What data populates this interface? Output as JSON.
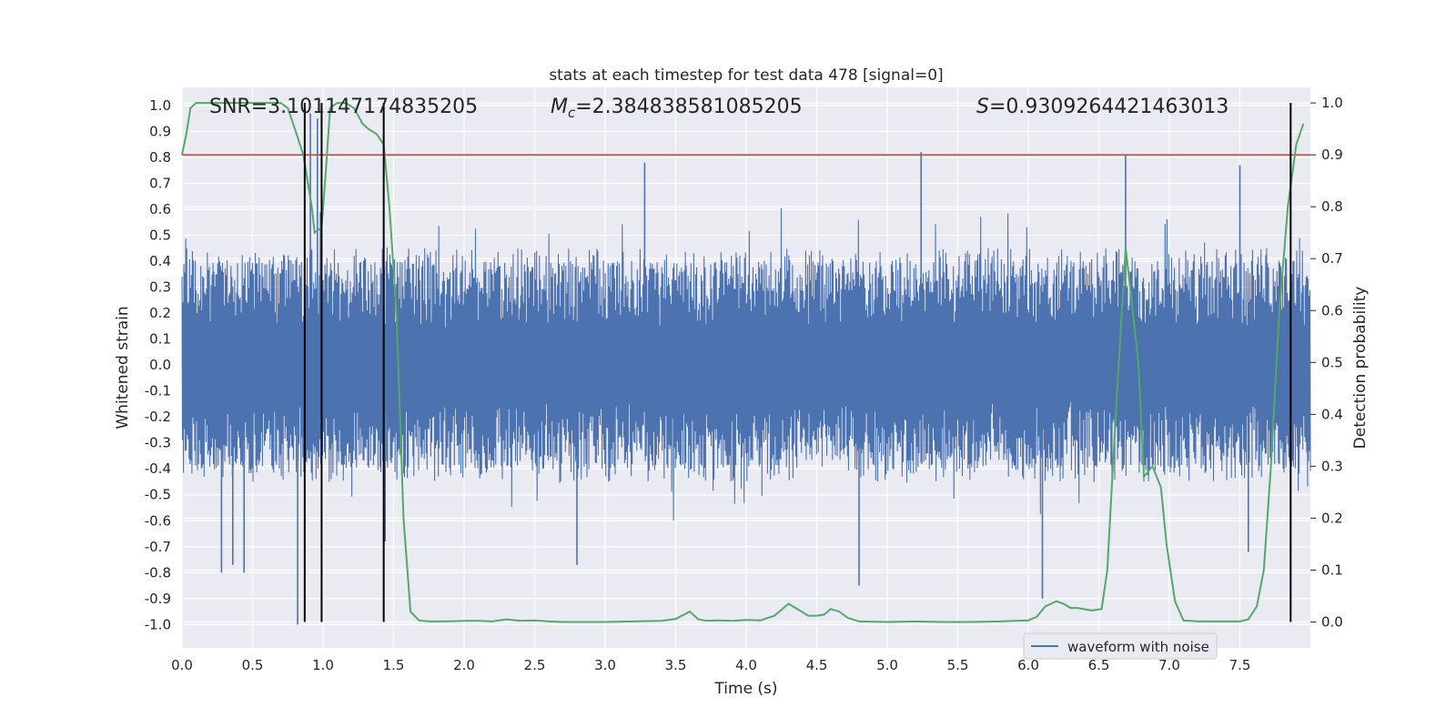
{
  "chart_data": {
    "type": "line",
    "title": "stats at each timestep for test data 478 [signal=0]",
    "xlabel": "Time (s)",
    "ylabel": "Whitened strain",
    "y2label": "Detection probability",
    "xlim": [
      0.0,
      8.0
    ],
    "ylim": [
      -1.09,
      1.07
    ],
    "y2lim": [
      -0.05,
      1.03
    ],
    "x_ticks": [
      "0.0",
      "0.5",
      "1.0",
      "1.5",
      "2.0",
      "2.5",
      "3.0",
      "3.5",
      "4.0",
      "4.5",
      "5.0",
      "5.5",
      "6.0",
      "6.5",
      "7.0",
      "7.5"
    ],
    "y_ticks": [
      "1.0",
      "0.9",
      "0.8",
      "0.7",
      "0.6",
      "0.5",
      "0.4",
      "0.3",
      "0.2",
      "0.1",
      "0.0",
      "-0.1",
      "-0.2",
      "-0.3",
      "-0.4",
      "-0.5",
      "-0.6",
      "-0.7",
      "-0.8",
      "-0.9",
      "-1.0"
    ],
    "y2_ticks": [
      "1.0",
      "0.9",
      "0.8",
      "0.7",
      "0.6",
      "0.5",
      "0.4",
      "0.3",
      "0.2",
      "0.1",
      "0.0"
    ],
    "grid": true,
    "legend": {
      "position": "bottom-right",
      "entries": [
        "waveform with noise"
      ]
    },
    "annotations": {
      "snr_label": "SNR=3.101147174835205",
      "mc_symbol": "M",
      "mc_sub": "c",
      "mc_value": "=2.384838581085205",
      "s_symbol": "S",
      "s_value": "=0.9309264421463013"
    },
    "threshold": 0.9,
    "detection_markers_s": [
      0.87,
      0.99,
      1.43,
      7.86
    ],
    "waveform": {
      "name": "waveform with noise",
      "t_start": 0.0,
      "t_end": 8.0,
      "typical_envelope": 0.45,
      "spikes": [
        {
          "t": 0.28,
          "v": -0.8
        },
        {
          "t": 0.36,
          "v": -0.77
        },
        {
          "t": 0.44,
          "v": -0.8
        },
        {
          "t": 0.82,
          "v": -1.0
        },
        {
          "t": 0.91,
          "v": 0.97
        },
        {
          "t": 0.96,
          "v": 0.95
        },
        {
          "t": 1.44,
          "v": -0.68
        },
        {
          "t": 2.8,
          "v": -0.77
        },
        {
          "t": 3.28,
          "v": 0.78
        },
        {
          "t": 4.8,
          "v": -0.85
        },
        {
          "t": 5.24,
          "v": 0.82
        },
        {
          "t": 6.1,
          "v": -0.9
        },
        {
          "t": 6.69,
          "v": 0.81
        },
        {
          "t": 7.5,
          "v": 0.77
        },
        {
          "t": 7.56,
          "v": -0.72
        }
      ]
    },
    "detection_probability": {
      "name": "Detection probability",
      "x": [
        0.0,
        0.03,
        0.06,
        0.1,
        0.15,
        0.2,
        0.3,
        0.4,
        0.5,
        0.6,
        0.7,
        0.75,
        0.8,
        0.86,
        0.92,
        0.94,
        0.99,
        1.02,
        1.05,
        1.1,
        1.16,
        1.22,
        1.28,
        1.32,
        1.38,
        1.43,
        1.47,
        1.52,
        1.57,
        1.62,
        1.68,
        1.75,
        1.85,
        2.0,
        2.1,
        2.2,
        2.3,
        2.4,
        2.5,
        2.6,
        2.7,
        2.8,
        3.0,
        3.2,
        3.4,
        3.5,
        3.6,
        3.66,
        3.72,
        3.8,
        3.9,
        4.0,
        4.1,
        4.2,
        4.3,
        4.38,
        4.44,
        4.5,
        4.55,
        4.6,
        4.66,
        4.72,
        4.8,
        5.0,
        5.2,
        5.4,
        5.6,
        5.8,
        6.0,
        6.06,
        6.12,
        6.2,
        6.25,
        6.3,
        6.35,
        6.45,
        6.52,
        6.56,
        6.62,
        6.69,
        6.72,
        6.78,
        6.82,
        6.88,
        6.94,
        6.98,
        7.04,
        7.1,
        7.2,
        7.35,
        7.5,
        7.56,
        7.62,
        7.67,
        7.72,
        7.78,
        7.84,
        7.9,
        7.95
      ],
      "y": [
        0.9,
        0.94,
        0.99,
        1.0,
        1.0,
        1.0,
        1.0,
        1.0,
        1.0,
        1.0,
        1.0,
        0.99,
        0.95,
        0.9,
        0.8,
        0.75,
        0.76,
        0.87,
        0.99,
        1.0,
        1.0,
        0.99,
        0.96,
        0.95,
        0.94,
        0.92,
        0.8,
        0.6,
        0.2,
        0.02,
        0.003,
        0.001,
        0.001,
        0.002,
        0.002,
        0.001,
        0.005,
        0.002,
        0.003,
        0.001,
        0.0,
        0.0,
        0.0,
        0.001,
        0.002,
        0.006,
        0.02,
        0.005,
        0.002,
        0.003,
        0.002,
        0.004,
        0.003,
        0.012,
        0.035,
        0.022,
        0.012,
        0.012,
        0.014,
        0.025,
        0.02,
        0.008,
        0.001,
        0.0,
        0.001,
        0.0,
        0.0,
        0.001,
        0.003,
        0.01,
        0.03,
        0.04,
        0.035,
        0.027,
        0.027,
        0.022,
        0.025,
        0.1,
        0.4,
        0.72,
        0.65,
        0.5,
        0.28,
        0.3,
        0.26,
        0.15,
        0.04,
        0.003,
        0.001,
        0.001,
        0.001,
        0.005,
        0.03,
        0.1,
        0.3,
        0.6,
        0.8,
        0.92,
        0.96
      ]
    },
    "colors": {
      "background": "#eaeaf2",
      "grid": "#ffffff",
      "waveform": "#4c72b0",
      "detection": "#55a868",
      "threshold": "#c44e52",
      "marker": "#000000"
    }
  }
}
